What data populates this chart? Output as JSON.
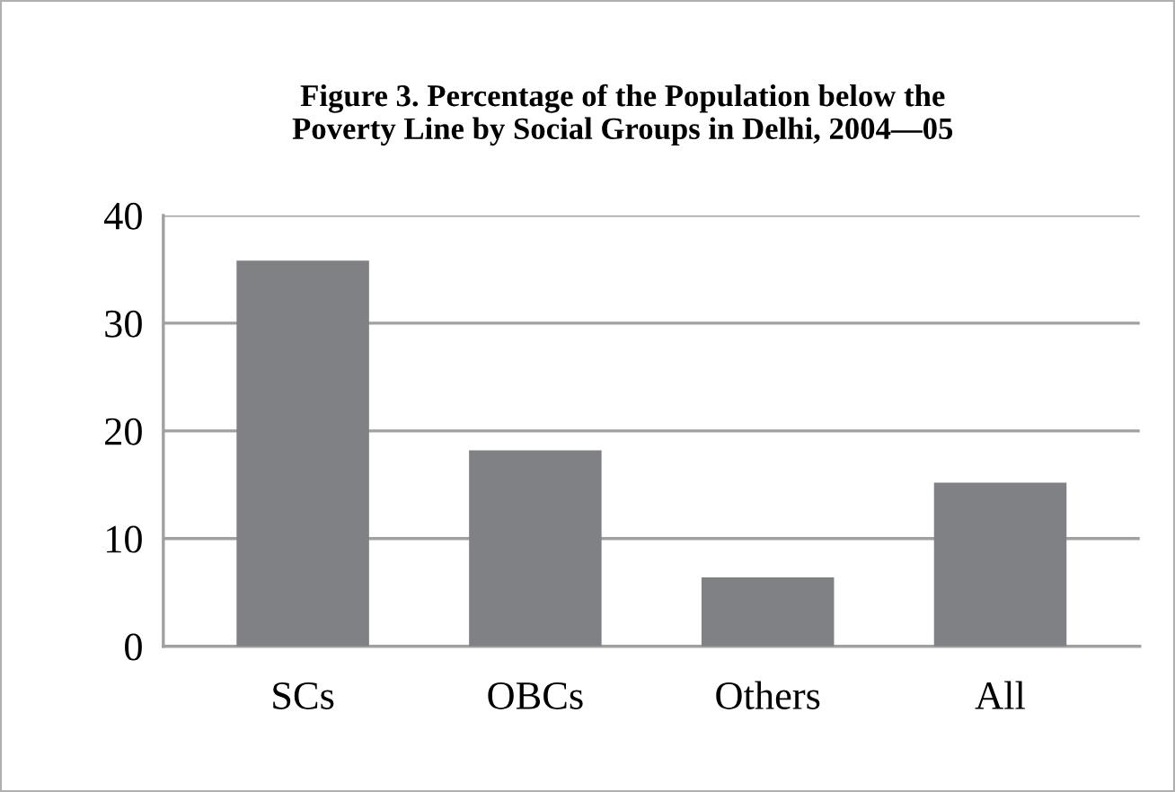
{
  "chart_data": {
    "type": "bar",
    "title": "Figure 3. Percentage of the Population below the\nPoverty Line by Social Groups in Delhi, 2004—05",
    "categories": [
      "SCs",
      "OBCs",
      "Others",
      "All"
    ],
    "values": [
      35.8,
      18.2,
      6.4,
      15.2
    ],
    "color": "#808184",
    "ylim": [
      0,
      40
    ],
    "yticks": [
      0,
      10,
      20,
      30,
      40
    ],
    "grid": "y"
  }
}
